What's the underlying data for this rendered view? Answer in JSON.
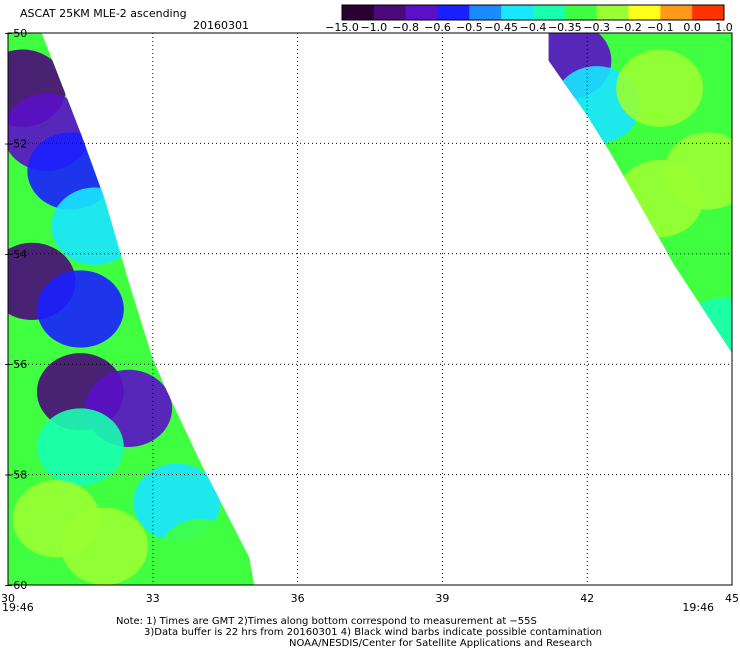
{
  "header": {
    "title": "ASCAT 25KM MLE-2 ascending",
    "date": "20160301"
  },
  "colorbar": {
    "ticks": [
      "-15.0",
      "-1.0",
      "-0.8",
      "-0.6",
      "-0.5",
      "-0.45",
      "-0.4",
      "-0.35",
      "-0.3",
      "-0.2",
      "-0.1",
      "0.0",
      "1.0"
    ],
    "colors": [
      "#2a0033",
      "#4a0a7a",
      "#5a10c8",
      "#1a20ff",
      "#1a8cff",
      "#19e6ff",
      "#19ffb0",
      "#40ff40",
      "#99ff33",
      "#ffff19",
      "#ff9919",
      "#ff3300"
    ]
  },
  "time_labels": {
    "left": "19:46",
    "right": "19:46",
    "color": "#dd2200"
  },
  "notes": [
    "Note: 1) Times are GMT 2)Times along bottom correspond to measurement at −55S",
    "3)Data buffer is 22 hrs from 20160301 4) Black wind barbs indicate possible contamination",
    "NOAA/NESDIS/Center for Satellite Applications and Research"
  ],
  "chart_data": {
    "type": "heatmap",
    "variable": "MLE-2",
    "x_ticks": [
      "30",
      "33",
      "36",
      "39",
      "42",
      "45"
    ],
    "y_ticks": [
      "-50",
      "-52",
      "-54",
      "-56",
      "-58",
      "-60"
    ],
    "xlim": [
      30,
      45
    ],
    "ylim": [
      -60,
      -50
    ],
    "grid": true,
    "colorbar_range": [
      -15.0,
      1.0
    ],
    "swaths": [
      {
        "name": "left swath",
        "edge": [
          [
            30.0,
            -50.0
          ],
          [
            30.7,
            -50.0
          ],
          [
            31.5,
            -51.8
          ],
          [
            32.0,
            -53.0
          ],
          [
            32.5,
            -54.5
          ],
          [
            33.0,
            -55.9
          ],
          [
            33.3,
            -56.5
          ],
          [
            34.0,
            -57.8
          ],
          [
            35.0,
            -59.5
          ],
          [
            35.1,
            -60.0
          ],
          [
            30.0,
            -60.0
          ]
        ],
        "values": [
          {
            "lon": 30.3,
            "lat": -51.0,
            "value": -1.0
          },
          {
            "lon": 30.8,
            "lat": -51.8,
            "value": -0.8
          },
          {
            "lon": 31.3,
            "lat": -52.5,
            "value": -0.6
          },
          {
            "lon": 31.8,
            "lat": -53.5,
            "value": -0.45
          },
          {
            "lon": 30.5,
            "lat": -54.5,
            "value": -1.0
          },
          {
            "lon": 31.5,
            "lat": -55.0,
            "value": -0.6
          },
          {
            "lon": 31.5,
            "lat": -56.5,
            "value": -1.0
          },
          {
            "lon": 32.5,
            "lat": -56.8,
            "value": -0.8
          },
          {
            "lon": 31.5,
            "lat": -57.5,
            "value": -0.4
          },
          {
            "lon": 31.0,
            "lat": -58.8,
            "value": -0.3
          },
          {
            "lon": 32.0,
            "lat": -59.3,
            "value": -0.3
          },
          {
            "lon": 33.5,
            "lat": -58.5,
            "value": -0.45
          },
          {
            "lon": 34.0,
            "lat": -59.5,
            "value": -0.35
          }
        ]
      },
      {
        "name": "right swath",
        "edge": [
          [
            41.2,
            -50.0
          ],
          [
            45.0,
            -50.0
          ],
          [
            45.0,
            -55.8
          ],
          [
            43.8,
            -54.2
          ],
          [
            42.5,
            -52.2
          ],
          [
            42.0,
            -51.5
          ],
          [
            41.2,
            -50.5
          ]
        ],
        "values": [
          {
            "lon": 41.6,
            "lat": -50.5,
            "value": -0.8
          },
          {
            "lon": 42.2,
            "lat": -51.3,
            "value": -0.45
          },
          {
            "lon": 43.5,
            "lat": -51.0,
            "value": -0.3
          },
          {
            "lon": 44.5,
            "lat": -52.5,
            "value": -0.3
          },
          {
            "lon": 43.5,
            "lat": -53.0,
            "value": -0.3
          },
          {
            "lon": 44.2,
            "lat": -54.5,
            "value": -0.35
          },
          {
            "lon": 44.8,
            "lat": -55.5,
            "value": -0.4
          }
        ]
      }
    ]
  }
}
